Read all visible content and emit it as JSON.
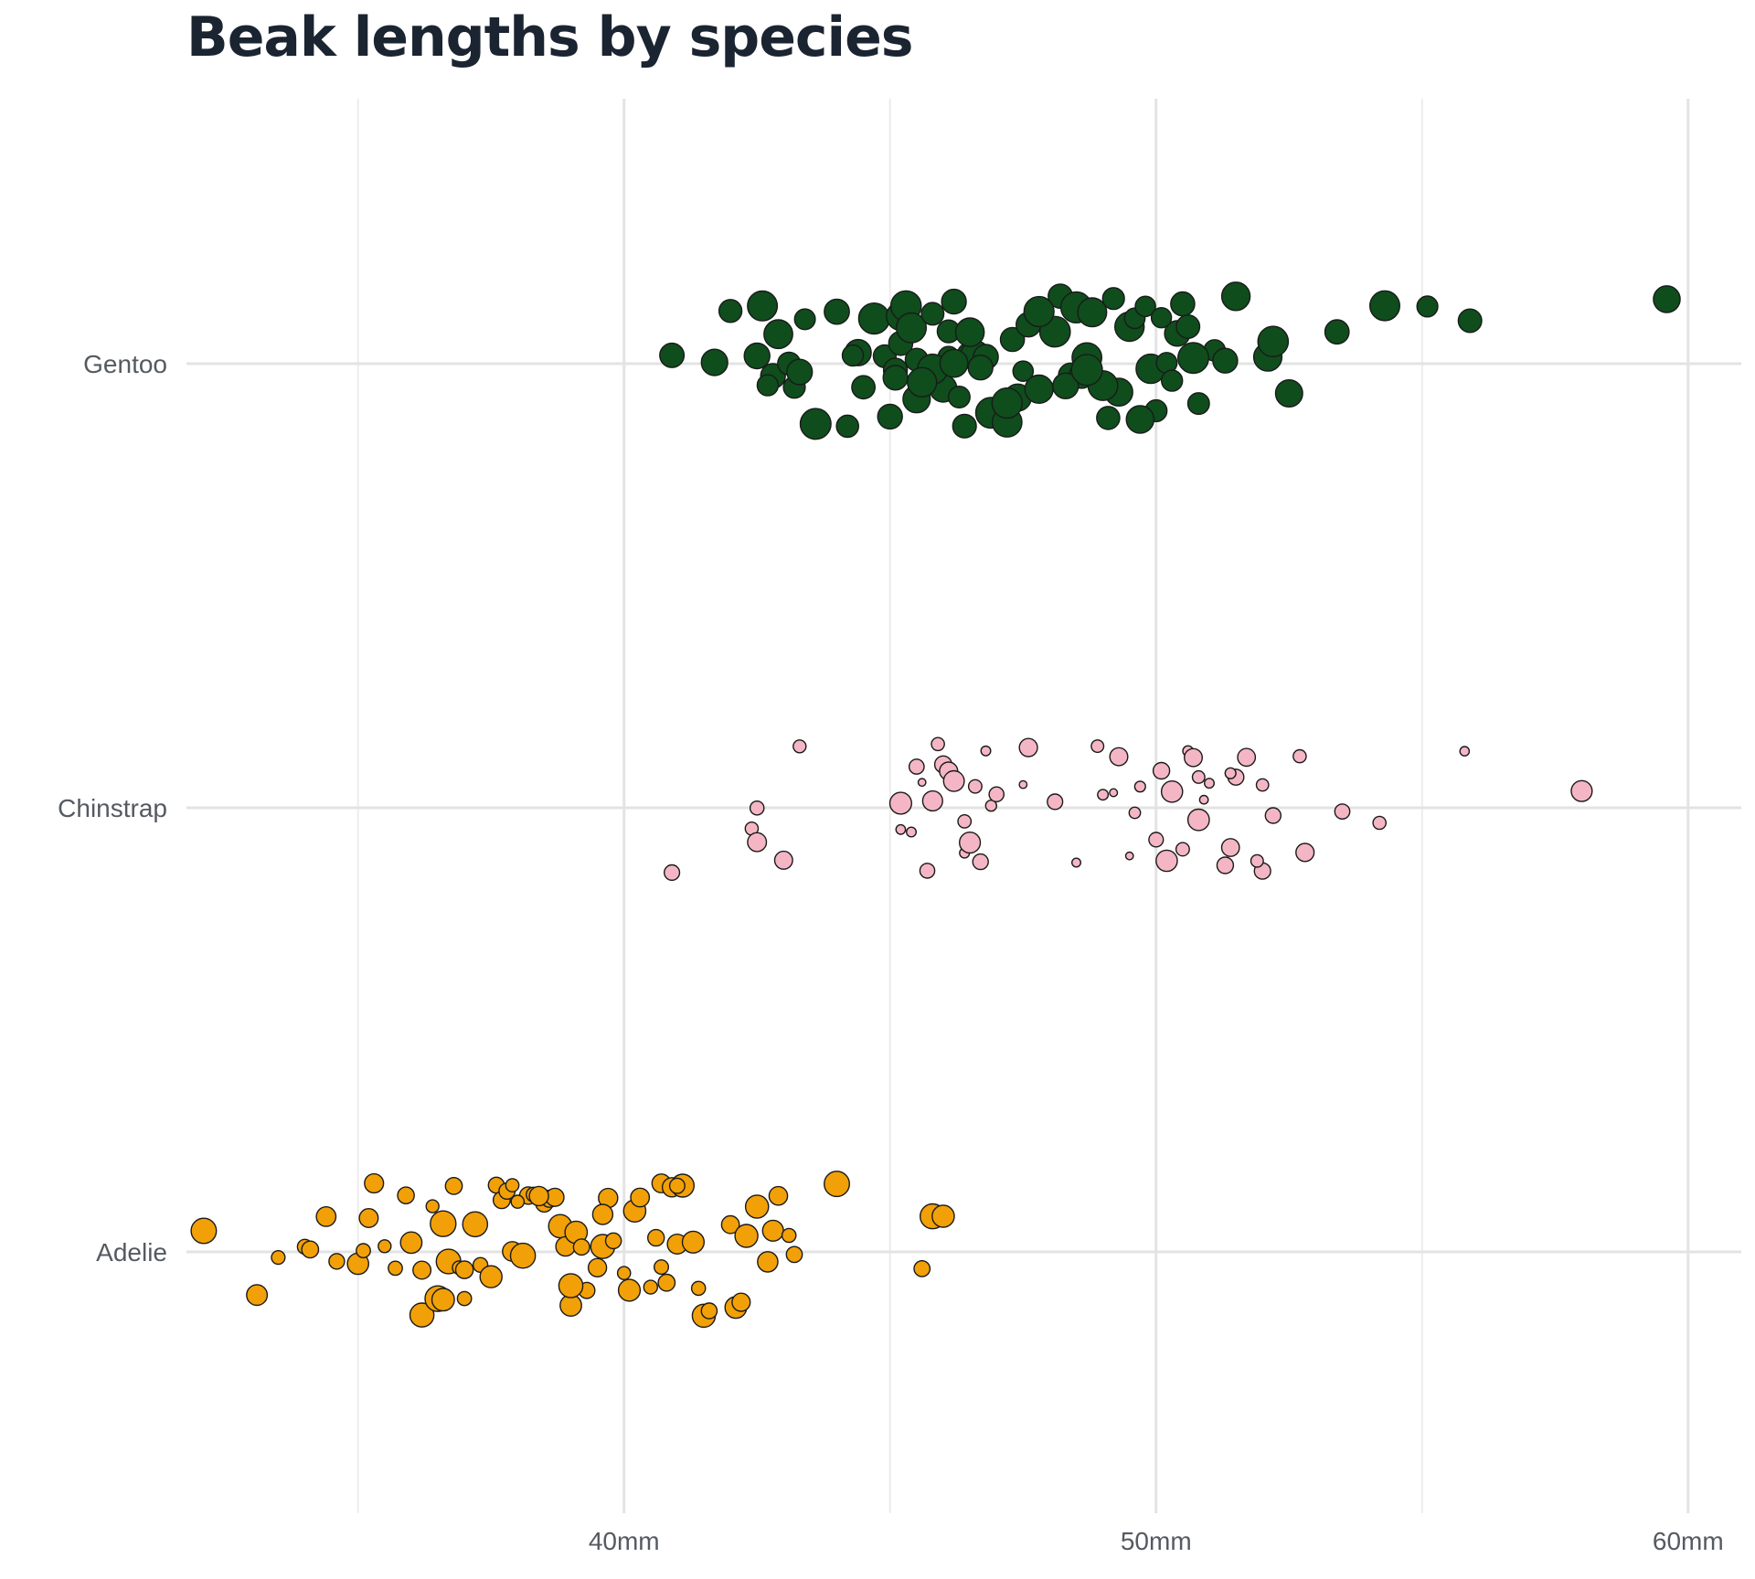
{
  "chart_data": {
    "type": "scatter",
    "title": "Beak lengths by species",
    "xlabel": "",
    "ylabel": "",
    "xlim": [
      31.5,
      61
    ],
    "x_ticks": [
      {
        "value": 40,
        "label": "40mm"
      },
      {
        "value": 50,
        "label": "50mm"
      },
      {
        "value": 60,
        "label": "60mm"
      }
    ],
    "x_minor_gridlines": [
      35,
      45,
      55
    ],
    "categories": [
      "Gentoo",
      "Chinstrap",
      "Adelie"
    ],
    "grid": true,
    "legend": "none",
    "colors": {
      "Gentoo": "#0f4d1c",
      "Chinstrap": "#f4b6c5",
      "Adelie": "#f2a007",
      "stroke": "#1a1a1a"
    },
    "size_note": "marker size varies by individual (unlabeled)",
    "series": [
      {
        "category": "Gentoo",
        "color": "#0f4d1c",
        "values": [
          41.7,
          42.0,
          42.5,
          42.6,
          42.8,
          42.9,
          42.7,
          43.1,
          43.2,
          43.3,
          43.4,
          43.6,
          44.0,
          44.2,
          44.4,
          44.5,
          44.7,
          44.9,
          45.1,
          45.2,
          45.2,
          45.3,
          45.4,
          45.5,
          45.1,
          45.5,
          45.8,
          46.1,
          46.2,
          46.0,
          46.4,
          46.5,
          46.6,
          46.8,
          46.1,
          46.3,
          46.5,
          46.9,
          47.2,
          47.4,
          47.5,
          47.3,
          47.6,
          47.8,
          48.1,
          48.2,
          48.4,
          48.5,
          48.7,
          48.6,
          48.8,
          49.1,
          49.2,
          49.3,
          49.0,
          49.5,
          49.6,
          49.8,
          49.9,
          50.0,
          50.2,
          50.4,
          50.5,
          50.6,
          50.8,
          50.1,
          50.3,
          51.1,
          51.3,
          51.5,
          52.1,
          52.2,
          52.5,
          53.4,
          54.3,
          55.1,
          55.9,
          59.6,
          40.9,
          45.8,
          46.7,
          47.8,
          48.3,
          49.7,
          50.7,
          45.0,
          46.2,
          47.2,
          48.7,
          45.6,
          44.3
        ]
      },
      {
        "category": "Chinstrap",
        "color": "#f4b6c5",
        "values": [
          40.9,
          42.4,
          42.5,
          42.5,
          43.0,
          43.3,
          45.2,
          45.2,
          45.4,
          45.5,
          45.6,
          45.7,
          45.9,
          46.0,
          46.1,
          46.2,
          46.4,
          46.4,
          46.6,
          46.7,
          46.8,
          46.9,
          47.0,
          47.5,
          47.6,
          48.1,
          48.5,
          49.0,
          49.2,
          49.3,
          49.5,
          49.6,
          49.7,
          50.0,
          50.1,
          50.2,
          50.3,
          50.5,
          50.6,
          50.7,
          50.8,
          50.8,
          51.0,
          51.3,
          51.4,
          51.5,
          51.7,
          52.0,
          52.0,
          52.2,
          52.7,
          52.8,
          53.5,
          54.2,
          55.8,
          58.0,
          46.5,
          45.8,
          50.9,
          51.9,
          51.4,
          48.9
        ]
      },
      {
        "category": "Adelie",
        "color": "#f2a007",
        "values": [
          32.1,
          33.1,
          33.5,
          34.0,
          34.1,
          34.4,
          34.6,
          35.0,
          35.1,
          35.3,
          35.5,
          35.7,
          35.9,
          36.0,
          36.2,
          36.4,
          36.5,
          36.6,
          36.7,
          36.8,
          36.9,
          37.0,
          37.2,
          37.3,
          37.5,
          37.6,
          37.7,
          37.8,
          37.9,
          38.1,
          38.2,
          38.3,
          38.5,
          38.6,
          38.7,
          38.8,
          38.9,
          39.0,
          39.1,
          39.2,
          39.3,
          39.5,
          39.6,
          39.7,
          39.8,
          40.1,
          40.2,
          40.3,
          40.5,
          40.6,
          40.7,
          40.8,
          40.9,
          41.0,
          41.1,
          41.3,
          41.4,
          41.5,
          41.6,
          42.0,
          42.1,
          42.2,
          42.3,
          42.5,
          42.7,
          42.8,
          42.9,
          43.1,
          43.2,
          44.0,
          45.6,
          45.8,
          46.0,
          36.2,
          37.0,
          38.0,
          39.0,
          40.0,
          41.0,
          36.6,
          37.9,
          39.6,
          40.7,
          35.2,
          38.4
        ]
      }
    ]
  }
}
